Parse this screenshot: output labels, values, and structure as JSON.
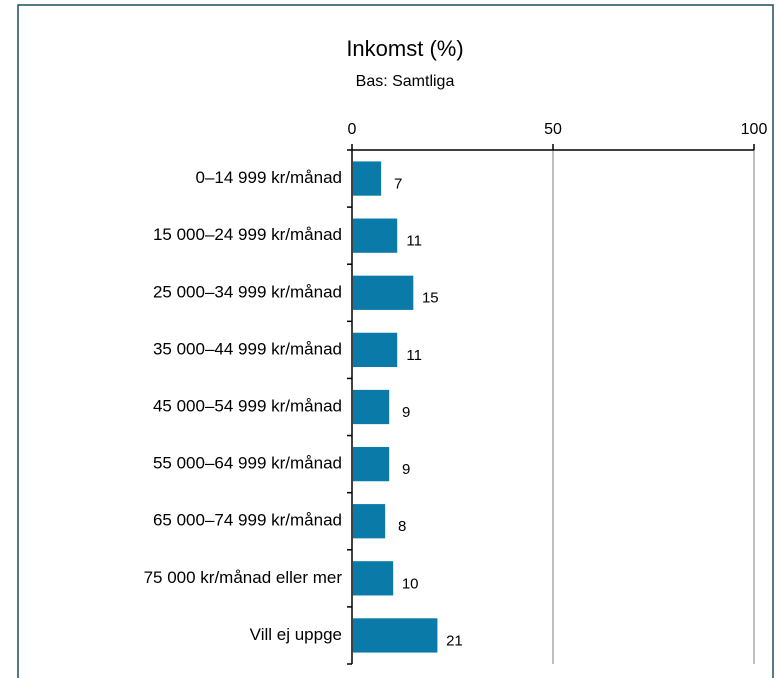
{
  "chart_data": {
    "type": "bar",
    "orientation": "horizontal",
    "title": "Inkomst (%)",
    "subtitle": "Bas: Samtliga",
    "categories": [
      "0–14 999 kr/månad",
      "15 000–24 999 kr/månad",
      "25 000–34 999 kr/månad",
      "35 000–44 999 kr/månad",
      "45 000–54 999 kr/månad",
      "55 000–64 999 kr/månad",
      "65 000–74 999 kr/månad",
      "75 000 kr/månad eller mer",
      "Vill ej uppge"
    ],
    "values": [
      7,
      11,
      15,
      11,
      9,
      9,
      8,
      10,
      21
    ],
    "color": "#0a7aa8",
    "xlim": [
      0,
      100
    ],
    "xticks": [
      0,
      50,
      100
    ],
    "grid": true
  }
}
